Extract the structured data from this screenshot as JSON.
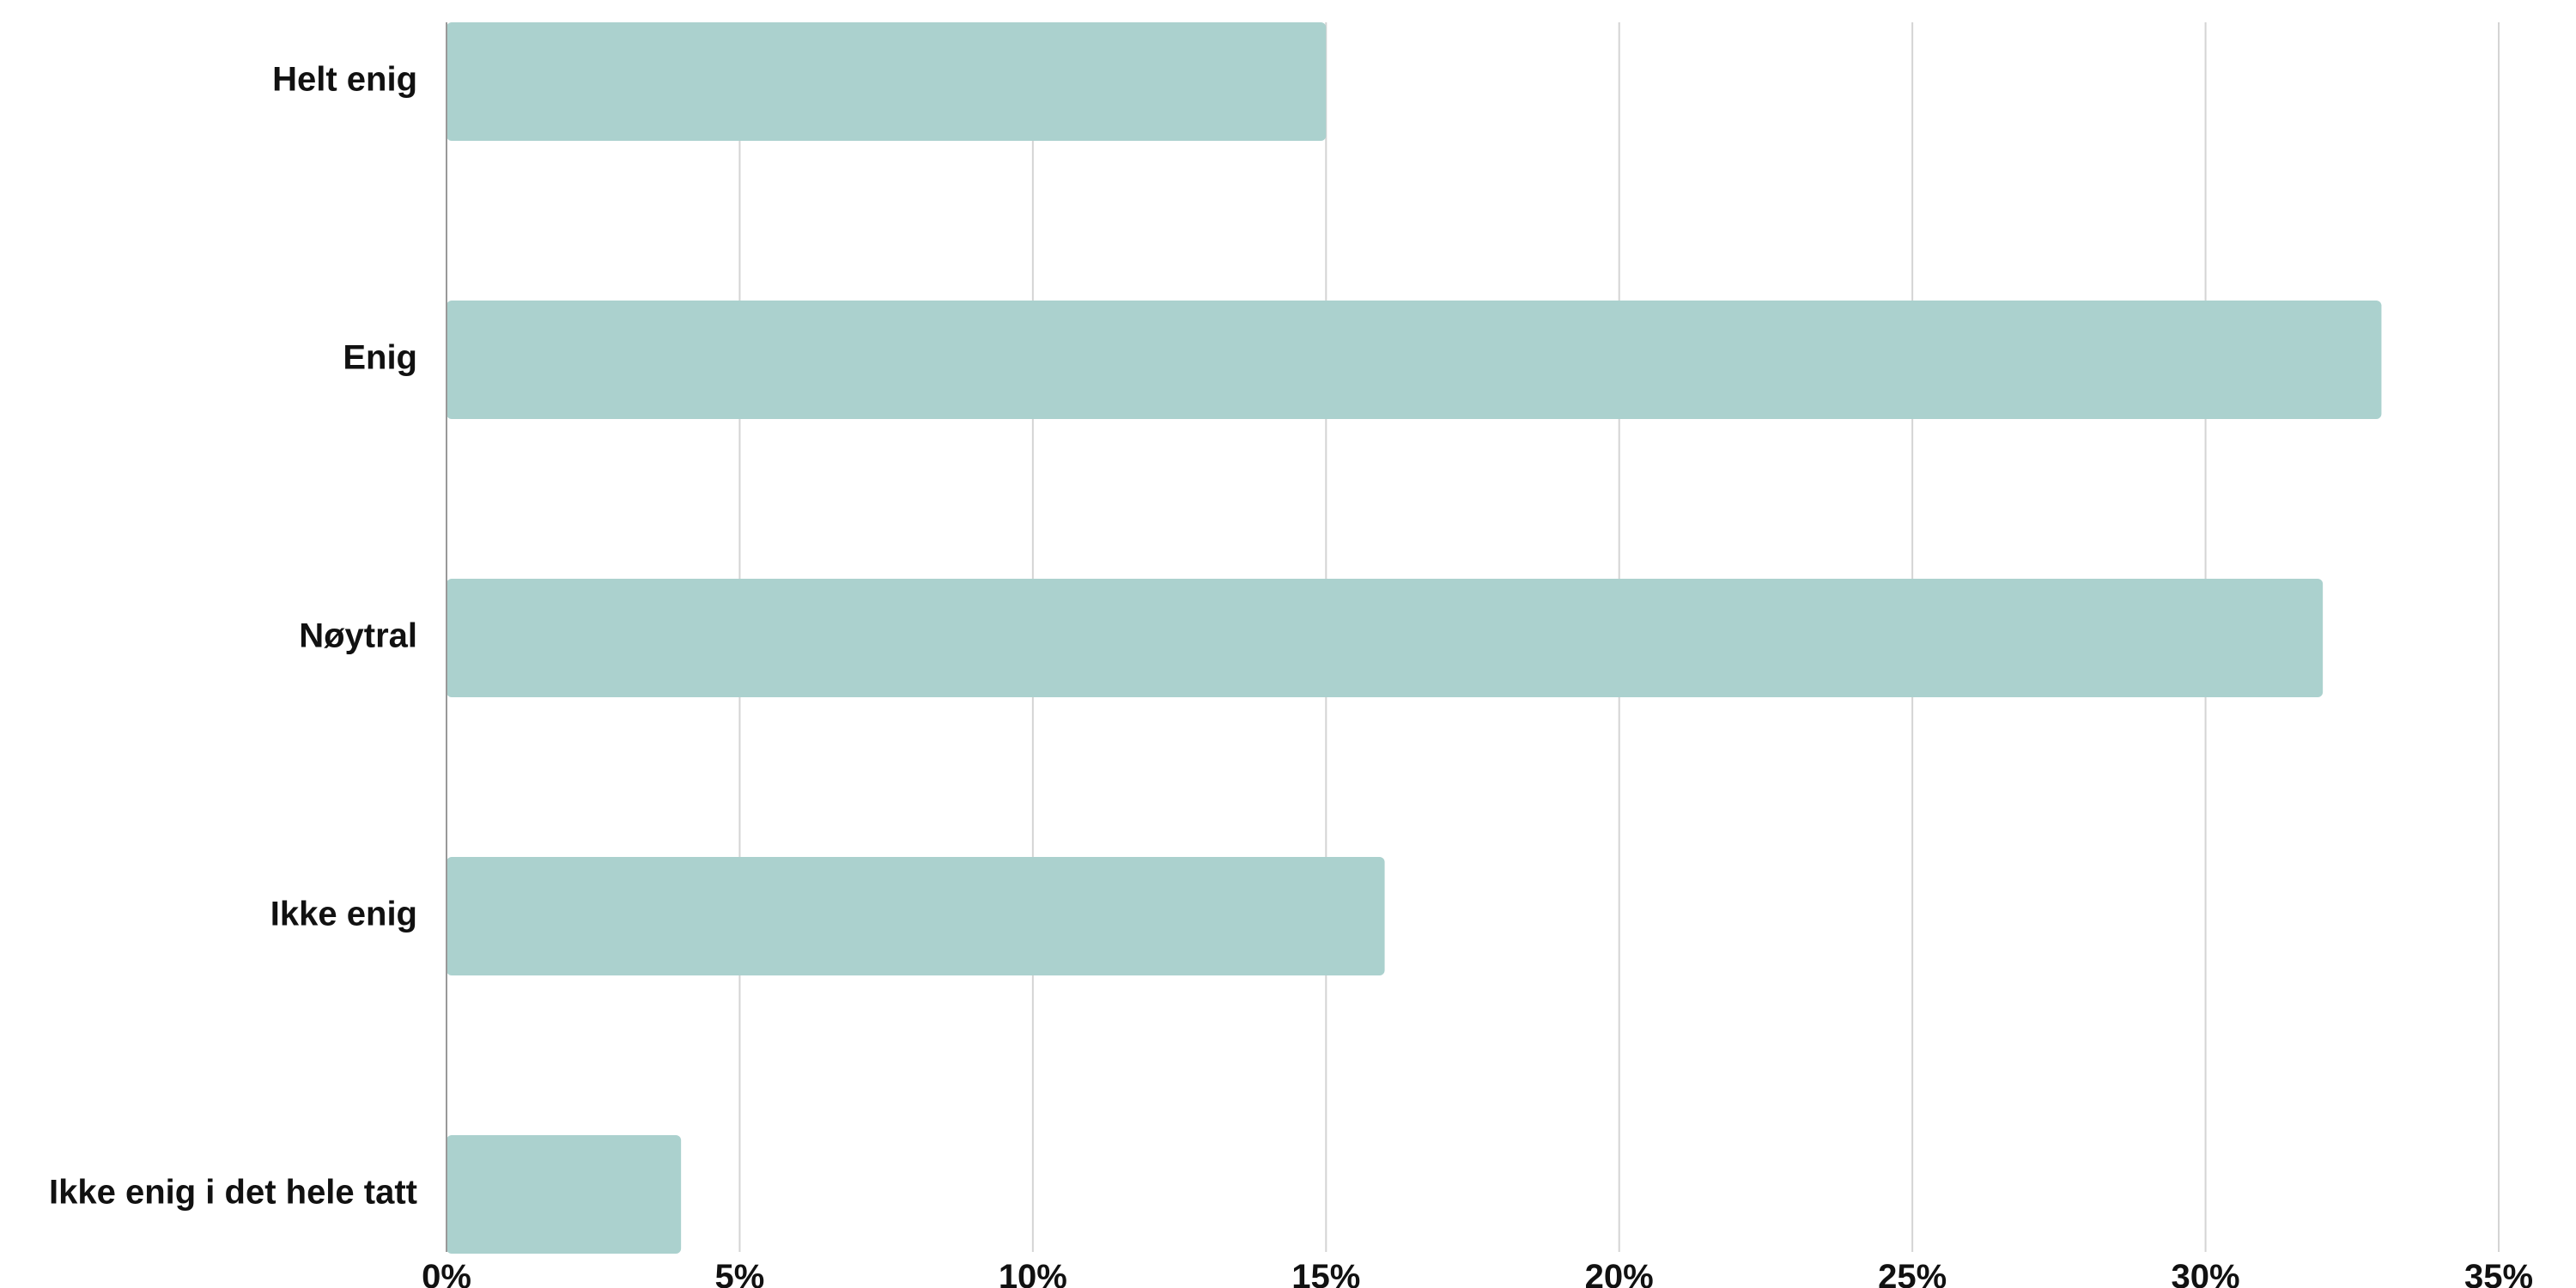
{
  "chart_data": {
    "type": "bar",
    "orientation": "horizontal",
    "categories": [
      "Helt enig",
      "Enig",
      "Nøytral",
      "Ikke enig",
      "Ikke enig i det hele tatt"
    ],
    "values": [
      15,
      33,
      32,
      16,
      4
    ],
    "value_unit": "%",
    "xlim": [
      0,
      35
    ],
    "x_ticks": [
      0,
      5,
      10,
      15,
      20,
      25,
      30,
      35
    ],
    "x_tick_labels": [
      "0%",
      "5%",
      "10%",
      "15%",
      "20%",
      "25%",
      "30%",
      "35%"
    ],
    "grid": "vertical",
    "legend": "none",
    "bar_color": "#abd1ce",
    "grid_color": "#d4d4d4",
    "axis_color": "#999999",
    "label_color": "#111111"
  }
}
